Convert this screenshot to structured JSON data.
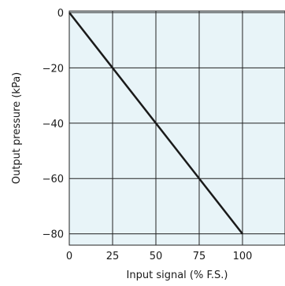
{
  "chart_data": {
    "type": "line",
    "xlabel": "Input signal (% F.S.)",
    "ylabel": "Output pressure (kPa)",
    "xlim": [
      0,
      100
    ],
    "ylim": [
      -82,
      0
    ],
    "x_ticks": [
      0,
      25,
      50,
      75,
      100
    ],
    "y_ticks": [
      0,
      -20,
      -40,
      -60,
      -80
    ],
    "grid": true,
    "series": [
      {
        "x": [
          0,
          100
        ],
        "y": [
          0,
          -80
        ]
      }
    ]
  },
  "colors": {
    "plot_background": "#e8f4f8",
    "grid": "#222222",
    "line": "#1a1a1a"
  }
}
